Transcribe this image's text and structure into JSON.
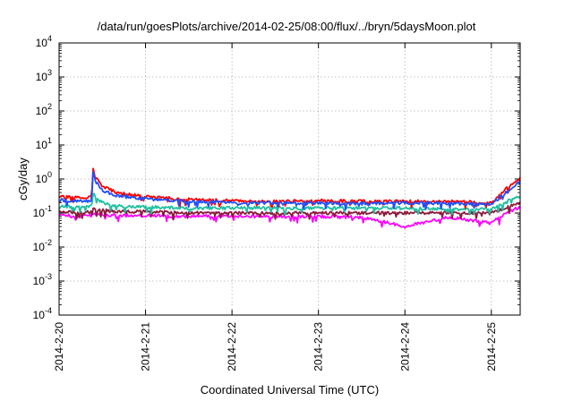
{
  "chart_data": {
    "type": "line",
    "title": "/data/run/goesPlots/archive/2014-02-25/08:00/flux/../bryn/5daysMoon.plot",
    "xlabel": "Coordinated Universal Time (UTC)",
    "ylabel": "cGy/day",
    "yscale": "log",
    "ylim": [
      0.0001,
      10000
    ],
    "y_ticks": [
      {
        "base": "10",
        "exp": "-4"
      },
      {
        "base": "10",
        "exp": "-3"
      },
      {
        "base": "10",
        "exp": "-2"
      },
      {
        "base": "10",
        "exp": "-1"
      },
      {
        "base": "10",
        "exp": "0"
      },
      {
        "base": "10",
        "exp": "1"
      },
      {
        "base": "10",
        "exp": "2"
      },
      {
        "base": "10",
        "exp": "3"
      },
      {
        "base": "10",
        "exp": "4"
      }
    ],
    "xlim": [
      "2014-02-20 00:00",
      "2014-02-25 08:00"
    ],
    "x_ticks": [
      "2014-2-20",
      "2014-2-21",
      "2014-2-22",
      "2014-2-23",
      "2014-2-24",
      "2014-2-25"
    ],
    "grid": true,
    "series": [
      {
        "color": "#ff0000",
        "x": [
          "2014-02-20 00:00",
          "2014-02-20 06:00",
          "2014-02-20 09:00",
          "2014-02-20 09:30",
          "2014-02-20 10:00",
          "2014-02-20 12:00",
          "2014-02-20 16:00",
          "2014-02-21 00:00",
          "2014-02-21 12:00",
          "2014-02-22 00:00",
          "2014-02-22 12:00",
          "2014-02-23 00:00",
          "2014-02-23 12:00",
          "2014-02-24 00:00",
          "2014-02-24 12:00",
          "2014-02-25 00:00",
          "2014-02-25 04:00",
          "2014-02-25 08:00"
        ],
        "y": [
          0.3,
          0.28,
          0.3,
          2.6,
          1.3,
          0.6,
          0.4,
          0.3,
          0.25,
          0.23,
          0.22,
          0.23,
          0.22,
          0.22,
          0.22,
          0.2,
          0.5,
          1.1
        ]
      },
      {
        "color": "#1f4fff",
        "x": [
          "2014-02-20 00:00",
          "2014-02-20 06:00",
          "2014-02-20 09:00",
          "2014-02-20 09:30",
          "2014-02-20 10:00",
          "2014-02-20 12:00",
          "2014-02-20 16:00",
          "2014-02-21 00:00",
          "2014-02-21 12:00",
          "2014-02-22 00:00",
          "2014-02-22 12:00",
          "2014-02-23 00:00",
          "2014-02-23 12:00",
          "2014-02-24 00:00",
          "2014-02-24 12:00",
          "2014-02-25 00:00",
          "2014-02-25 04:00",
          "2014-02-25 08:00"
        ],
        "y": [
          0.24,
          0.22,
          0.23,
          1.9,
          0.9,
          0.45,
          0.32,
          0.26,
          0.22,
          0.2,
          0.2,
          0.2,
          0.19,
          0.2,
          0.19,
          0.18,
          0.4,
          0.85
        ]
      },
      {
        "color": "#20c0a0",
        "x": [
          "2014-02-20 00:00",
          "2014-02-20 06:00",
          "2014-02-20 09:00",
          "2014-02-20 09:30",
          "2014-02-20 10:00",
          "2014-02-20 12:00",
          "2014-02-20 16:00",
          "2014-02-21 00:00",
          "2014-02-21 12:00",
          "2014-02-22 00:00",
          "2014-02-22 12:00",
          "2014-02-23 00:00",
          "2014-02-23 12:00",
          "2014-02-24 00:00",
          "2014-02-24 12:00",
          "2014-02-25 00:00",
          "2014-02-25 04:00",
          "2014-02-25 08:00"
        ],
        "y": [
          0.16,
          0.15,
          0.16,
          0.4,
          0.3,
          0.2,
          0.16,
          0.15,
          0.14,
          0.14,
          0.14,
          0.14,
          0.14,
          0.14,
          0.13,
          0.13,
          0.22,
          0.3
        ]
      },
      {
        "color": "#8b1a3a",
        "x": [
          "2014-02-20 00:00",
          "2014-02-20 06:00",
          "2014-02-20 09:00",
          "2014-02-20 09:30",
          "2014-02-20 10:00",
          "2014-02-20 12:00",
          "2014-02-20 16:00",
          "2014-02-21 00:00",
          "2014-02-21 12:00",
          "2014-02-22 00:00",
          "2014-02-22 12:00",
          "2014-02-23 00:00",
          "2014-02-23 12:00",
          "2014-02-24 00:00",
          "2014-02-24 12:00",
          "2014-02-25 00:00",
          "2014-02-25 04:00",
          "2014-02-25 08:00"
        ],
        "y": [
          0.11,
          0.1,
          0.11,
          0.15,
          0.13,
          0.12,
          0.11,
          0.11,
          0.1,
          0.1,
          0.1,
          0.1,
          0.1,
          0.1,
          0.1,
          0.1,
          0.14,
          0.2
        ]
      },
      {
        "color": "#ff00ff",
        "x": [
          "2014-02-20 00:00",
          "2014-02-20 06:00",
          "2014-02-20 09:00",
          "2014-02-20 09:30",
          "2014-02-20 10:00",
          "2014-02-20 12:00",
          "2014-02-20 16:00",
          "2014-02-21 00:00",
          "2014-02-21 12:00",
          "2014-02-22 00:00",
          "2014-02-22 12:00",
          "2014-02-23 00:00",
          "2014-02-23 12:00",
          "2014-02-24 00:00",
          "2014-02-24 12:00",
          "2014-02-25 00:00",
          "2014-02-25 04:00",
          "2014-02-25 08:00"
        ],
        "y": [
          0.085,
          0.08,
          0.085,
          0.1,
          0.095,
          0.09,
          0.085,
          0.085,
          0.08,
          0.08,
          0.08,
          0.08,
          0.075,
          0.04,
          0.075,
          0.05,
          0.1,
          0.15
        ]
      }
    ]
  }
}
